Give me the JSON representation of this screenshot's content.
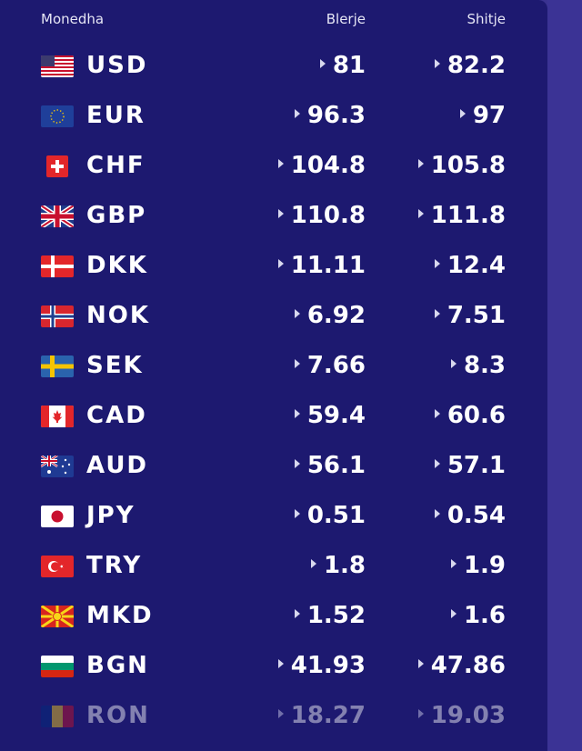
{
  "header": {
    "currency": "Monedha",
    "buy": "Blerje",
    "sell": "Shitje"
  },
  "rates": [
    {
      "code": "USD",
      "buy": "81",
      "sell": "82.2",
      "flag": "us-flag-icon"
    },
    {
      "code": "EUR",
      "buy": "96.3",
      "sell": "97",
      "flag": "eu-flag-icon"
    },
    {
      "code": "CHF",
      "buy": "104.8",
      "sell": "105.8",
      "flag": "ch-flag-icon"
    },
    {
      "code": "GBP",
      "buy": "110.8",
      "sell": "111.8",
      "flag": "gb-flag-icon"
    },
    {
      "code": "DKK",
      "buy": "11.11",
      "sell": "12.4",
      "flag": "dk-flag-icon"
    },
    {
      "code": "NOK",
      "buy": "6.92",
      "sell": "7.51",
      "flag": "no-flag-icon"
    },
    {
      "code": "SEK",
      "buy": "7.66",
      "sell": "8.3",
      "flag": "se-flag-icon"
    },
    {
      "code": "CAD",
      "buy": "59.4",
      "sell": "60.6",
      "flag": "ca-flag-icon"
    },
    {
      "code": "AUD",
      "buy": "56.1",
      "sell": "57.1",
      "flag": "au-flag-icon"
    },
    {
      "code": "JPY",
      "buy": "0.51",
      "sell": "0.54",
      "flag": "jp-flag-icon"
    },
    {
      "code": "TRY",
      "buy": "1.8",
      "sell": "1.9",
      "flag": "tr-flag-icon"
    },
    {
      "code": "MKD",
      "buy": "1.52",
      "sell": "1.6",
      "flag": "mk-flag-icon"
    },
    {
      "code": "BGN",
      "buy": "41.93",
      "sell": "47.86",
      "flag": "bg-flag-icon"
    },
    {
      "code": "RON",
      "buy": "18.27",
      "sell": "19.03",
      "flag": "ro-flag-icon"
    }
  ],
  "colors": {
    "panel_bg": "#1d1970",
    "page_bg": "#3a3290",
    "text": "#ffffff",
    "arrow": "#d8d8ee"
  }
}
